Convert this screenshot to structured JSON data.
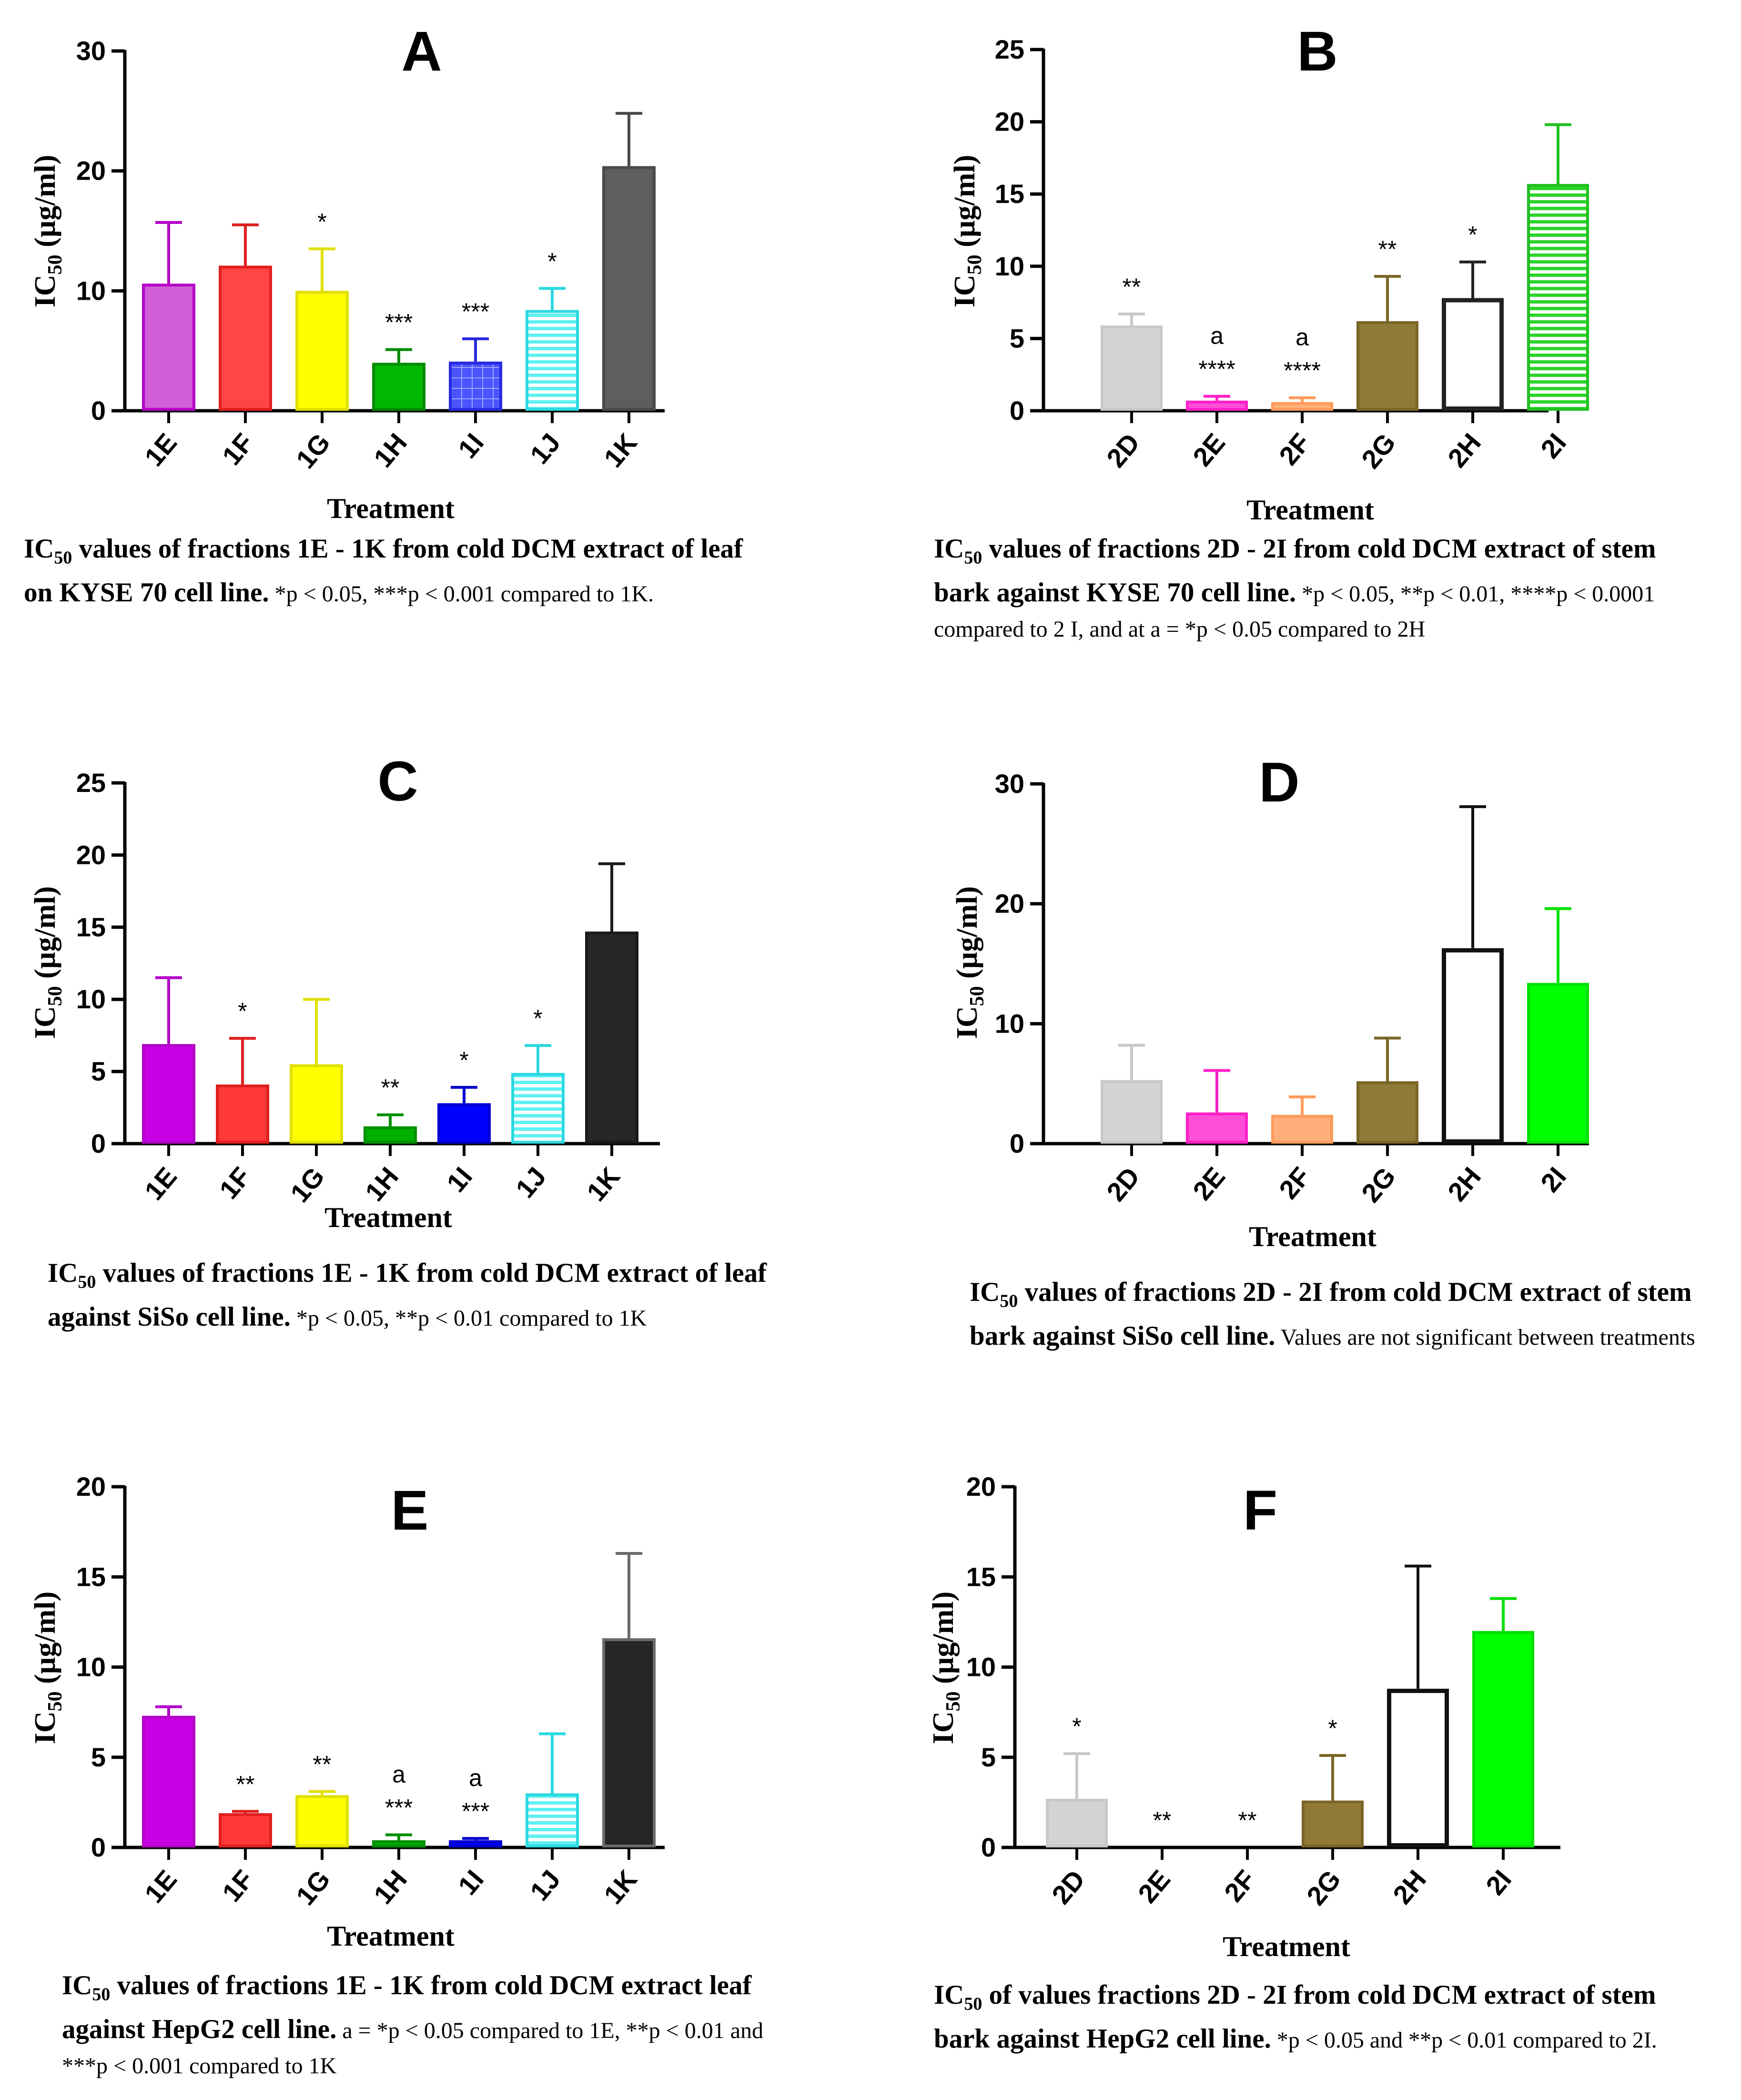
{
  "chart_data": [
    {
      "id": "A",
      "type": "bar",
      "panel_letter": "A",
      "categories": [
        "1E",
        "1F",
        "1G",
        "1H",
        "1I",
        "1J",
        "1K"
      ],
      "values": [
        10.6,
        12.1,
        10.0,
        4.0,
        4.1,
        8.4,
        20.4
      ],
      "errors": [
        5.1,
        3.4,
        3.5,
        1.1,
        1.9,
        1.8,
        4.4
      ],
      "significance": [
        "",
        "",
        "*",
        "***",
        "***",
        "*",
        ""
      ],
      "ylim": [
        0,
        30
      ],
      "yticks": [
        0,
        10,
        20,
        30
      ],
      "ylabel_main": "IC",
      "ylabel_sub": "50",
      "ylabel_rest": " (µg/ml)",
      "xlabel": "Treatment",
      "colors": [
        "#d35fd8",
        "#ff4545",
        "#ffff00",
        "#00b800",
        "#4a54ff",
        "#5ef0f0",
        "#5e5e5e"
      ],
      "edges": [
        "#b400c8",
        "#e02020",
        "#e0e000",
        "#008a00",
        "#2a2ae0",
        "#2ad8e0",
        "#4a4a4a"
      ],
      "patterns": [
        "",
        "",
        "",
        "",
        "grid",
        "hlines",
        ""
      ]
    },
    {
      "id": "B",
      "type": "bar",
      "panel_letter": "B",
      "categories": [
        "2D",
        "2E",
        "2F",
        "2G",
        "2H",
        "2I"
      ],
      "values": [
        5.9,
        0.7,
        0.6,
        6.2,
        7.8,
        15.7
      ],
      "errors": [
        0.8,
        0.3,
        0.3,
        3.1,
        2.5,
        4.1
      ],
      "significance": [
        "**",
        "****",
        "****",
        "**",
        "*",
        ""
      ],
      "marks": [
        "",
        "a",
        "a",
        "",
        "",
        ""
      ],
      "ylim": [
        0,
        25
      ],
      "yticks": [
        0,
        5,
        10,
        15,
        20,
        25
      ],
      "ylabel_main": "IC",
      "ylabel_sub": "50",
      "ylabel_rest": " (µg/ml)",
      "xlabel": "Treatment",
      "colors": [
        "#d3d3d3",
        "#ff4fd8",
        "#ffb07a",
        "#8f7a36",
        "#ffffff",
        "#2cd42c"
      ],
      "edges": [
        "#c8c8c8",
        "#ff20c8",
        "#ff9a5a",
        "#7a6528",
        "#222222",
        "#20c020"
      ],
      "patterns": [
        "",
        "",
        "",
        "",
        "",
        "hlines"
      ]
    },
    {
      "id": "C",
      "type": "bar",
      "panel_letter": "C",
      "categories": [
        "1E",
        "1F",
        "1G",
        "1H",
        "1I",
        "1J",
        "1K"
      ],
      "values": [
        6.9,
        4.1,
        5.5,
        1.2,
        2.8,
        4.9,
        14.7
      ],
      "errors": [
        4.6,
        3.2,
        4.5,
        0.8,
        1.1,
        1.9,
        4.7
      ],
      "significance": [
        "",
        "*",
        "",
        "**",
        "*",
        "*",
        ""
      ],
      "ylim": [
        0,
        25
      ],
      "yticks": [
        0,
        5,
        10,
        15,
        20,
        25
      ],
      "ylabel_main": "IC",
      "ylabel_sub": "50",
      "ylabel_rest": " (µg/ml)",
      "xlabel": "Treatment",
      "colors": [
        "#c800e6",
        "#ff3838",
        "#ffff00",
        "#00b000",
        "#0000ff",
        "#5ef0f0",
        "#262626"
      ],
      "edges": [
        "#b400c8",
        "#e02020",
        "#e0e000",
        "#009000",
        "#0000d0",
        "#2ad8e0",
        "#1a1a1a"
      ],
      "patterns": [
        "",
        "",
        "",
        "",
        "",
        "hlines",
        ""
      ]
    },
    {
      "id": "D",
      "type": "bar",
      "panel_letter": "D",
      "categories": [
        "2D",
        "2E",
        "2F",
        "2G",
        "2H",
        "2I"
      ],
      "values": [
        5.3,
        2.6,
        2.4,
        5.2,
        16.3,
        13.4
      ],
      "errors": [
        2.9,
        3.5,
        1.5,
        3.6,
        11.8,
        6.2
      ],
      "significance": [
        "",
        "",
        "",
        "",
        "",
        ""
      ],
      "ylim": [
        0,
        30
      ],
      "yticks": [
        0,
        10,
        20,
        30
      ],
      "ylabel_main": "IC",
      "ylabel_sub": "50",
      "ylabel_rest": " (µg/ml)",
      "xlabel": "Treatment",
      "colors": [
        "#d3d3d3",
        "#ff4fd8",
        "#ffb07a",
        "#8f7a36",
        "#ffffff",
        "#00ff00"
      ],
      "edges": [
        "#c8c8c8",
        "#ff20c8",
        "#ff9a5a",
        "#7a6528",
        "#111111",
        "#00e000"
      ],
      "patterns": [
        "",
        "",
        "",
        "",
        "",
        ""
      ]
    },
    {
      "id": "E",
      "type": "bar",
      "panel_letter": "E",
      "categories": [
        "1E",
        "1F",
        "1G",
        "1H",
        "1I",
        "1J",
        "1K"
      ],
      "values": [
        7.3,
        1.9,
        2.9,
        0.4,
        0.4,
        3.0,
        11.6
      ],
      "errors": [
        0.5,
        0.1,
        0.2,
        0.3,
        0.1,
        3.3,
        4.7
      ],
      "significance": [
        "",
        "**",
        "**",
        "***",
        "***",
        "",
        ""
      ],
      "marks": [
        "",
        "",
        "",
        "a",
        "a",
        "",
        ""
      ],
      "ylim": [
        0,
        20
      ],
      "yticks": [
        0,
        5,
        10,
        15,
        20
      ],
      "ylabel_main": "IC",
      "ylabel_sub": "50",
      "ylabel_rest": " (µg/ml)",
      "xlabel": "Treatment",
      "colors": [
        "#c800e6",
        "#ff3838",
        "#ffff00",
        "#00b000",
        "#0000ff",
        "#5ef0f0",
        "#262626"
      ],
      "edges": [
        "#b400c8",
        "#e02020",
        "#e0e000",
        "#009000",
        "#0000d0",
        "#2ad8e0",
        "#6a6a6a"
      ],
      "patterns": [
        "",
        "",
        "",
        "",
        "",
        "hlines",
        ""
      ]
    },
    {
      "id": "F",
      "type": "bar",
      "panel_letter": "F",
      "categories": [
        "2D",
        "2E",
        "2F",
        "2G",
        "2H",
        "2I"
      ],
      "values": [
        2.7,
        0,
        0,
        2.6,
        8.8,
        12.0
      ],
      "errors": [
        2.5,
        0,
        0,
        2.5,
        6.8,
        1.8
      ],
      "significance": [
        "*",
        "**",
        "**",
        "*",
        "",
        ""
      ],
      "ylim": [
        0,
        20
      ],
      "yticks": [
        0,
        5,
        10,
        15,
        20
      ],
      "ylabel_main": "IC",
      "ylabel_sub": "50",
      "ylabel_rest": " (µg/ml)",
      "xlabel": "Treatment",
      "colors": [
        "#d3d3d3",
        "#ff4fd8",
        "#ffb07a",
        "#8f7a36",
        "#ffffff",
        "#00ff00"
      ],
      "edges": [
        "#c8c8c8",
        "#ff20c8",
        "#ff9a5a",
        "#7a6528",
        "#111111",
        "#00e000"
      ],
      "patterns": [
        "",
        "",
        "",
        "",
        "",
        ""
      ]
    }
  ],
  "captions": {
    "A": {
      "bold_pre": "IC",
      "bold_sub": "50",
      "bold_post": " values of fractions 1E - 1K from cold DCM extract of leaf on KYSE 70 cell line.",
      "normal": "*p < 0.05, ***p < 0.001 compared to 1K."
    },
    "B": {
      "bold_pre": "IC",
      "bold_sub": "50",
      "bold_post": " values of fractions 2D - 2I from cold DCM extract of stem bark against KYSE 70 cell line.",
      "normal": "*p < 0.05, **p < 0.01, ****p < 0.0001 compared to 2 I, and at a = *p < 0.05 compared to 2H"
    },
    "C": {
      "bold_pre": "IC",
      "bold_sub": "50",
      "bold_post": " values of fractions 1E - 1K from cold DCM extract of leaf against SiSo cell line.",
      "normal": "*p < 0.05, **p < 0.01 compared to 1K"
    },
    "D": {
      "bold_pre": "IC",
      "bold_sub": "50",
      "bold_post": " values of fractions 2D - 2I from cold DCM extract of stem bark against SiSo cell line.",
      "normal": "Values are not significant between treatments"
    },
    "E": {
      "bold_pre": "IC",
      "bold_sub": "50",
      "bold_post": " values of fractions 1E - 1K from cold DCM extract leaf against HepG2 cell line.",
      "normal": "a = *p < 0.05 compared to 1E, **p < 0.01 and ***p < 0.001 compared to 1K"
    },
    "F": {
      "bold_pre": "IC",
      "bold_sub": "50",
      "bold_post": " of values fractions 2D - 2I from cold DCM extract of stem bark against HepG2 cell line.",
      "normal": "*p < 0.05 and **p < 0.01 compared to 2I."
    }
  }
}
